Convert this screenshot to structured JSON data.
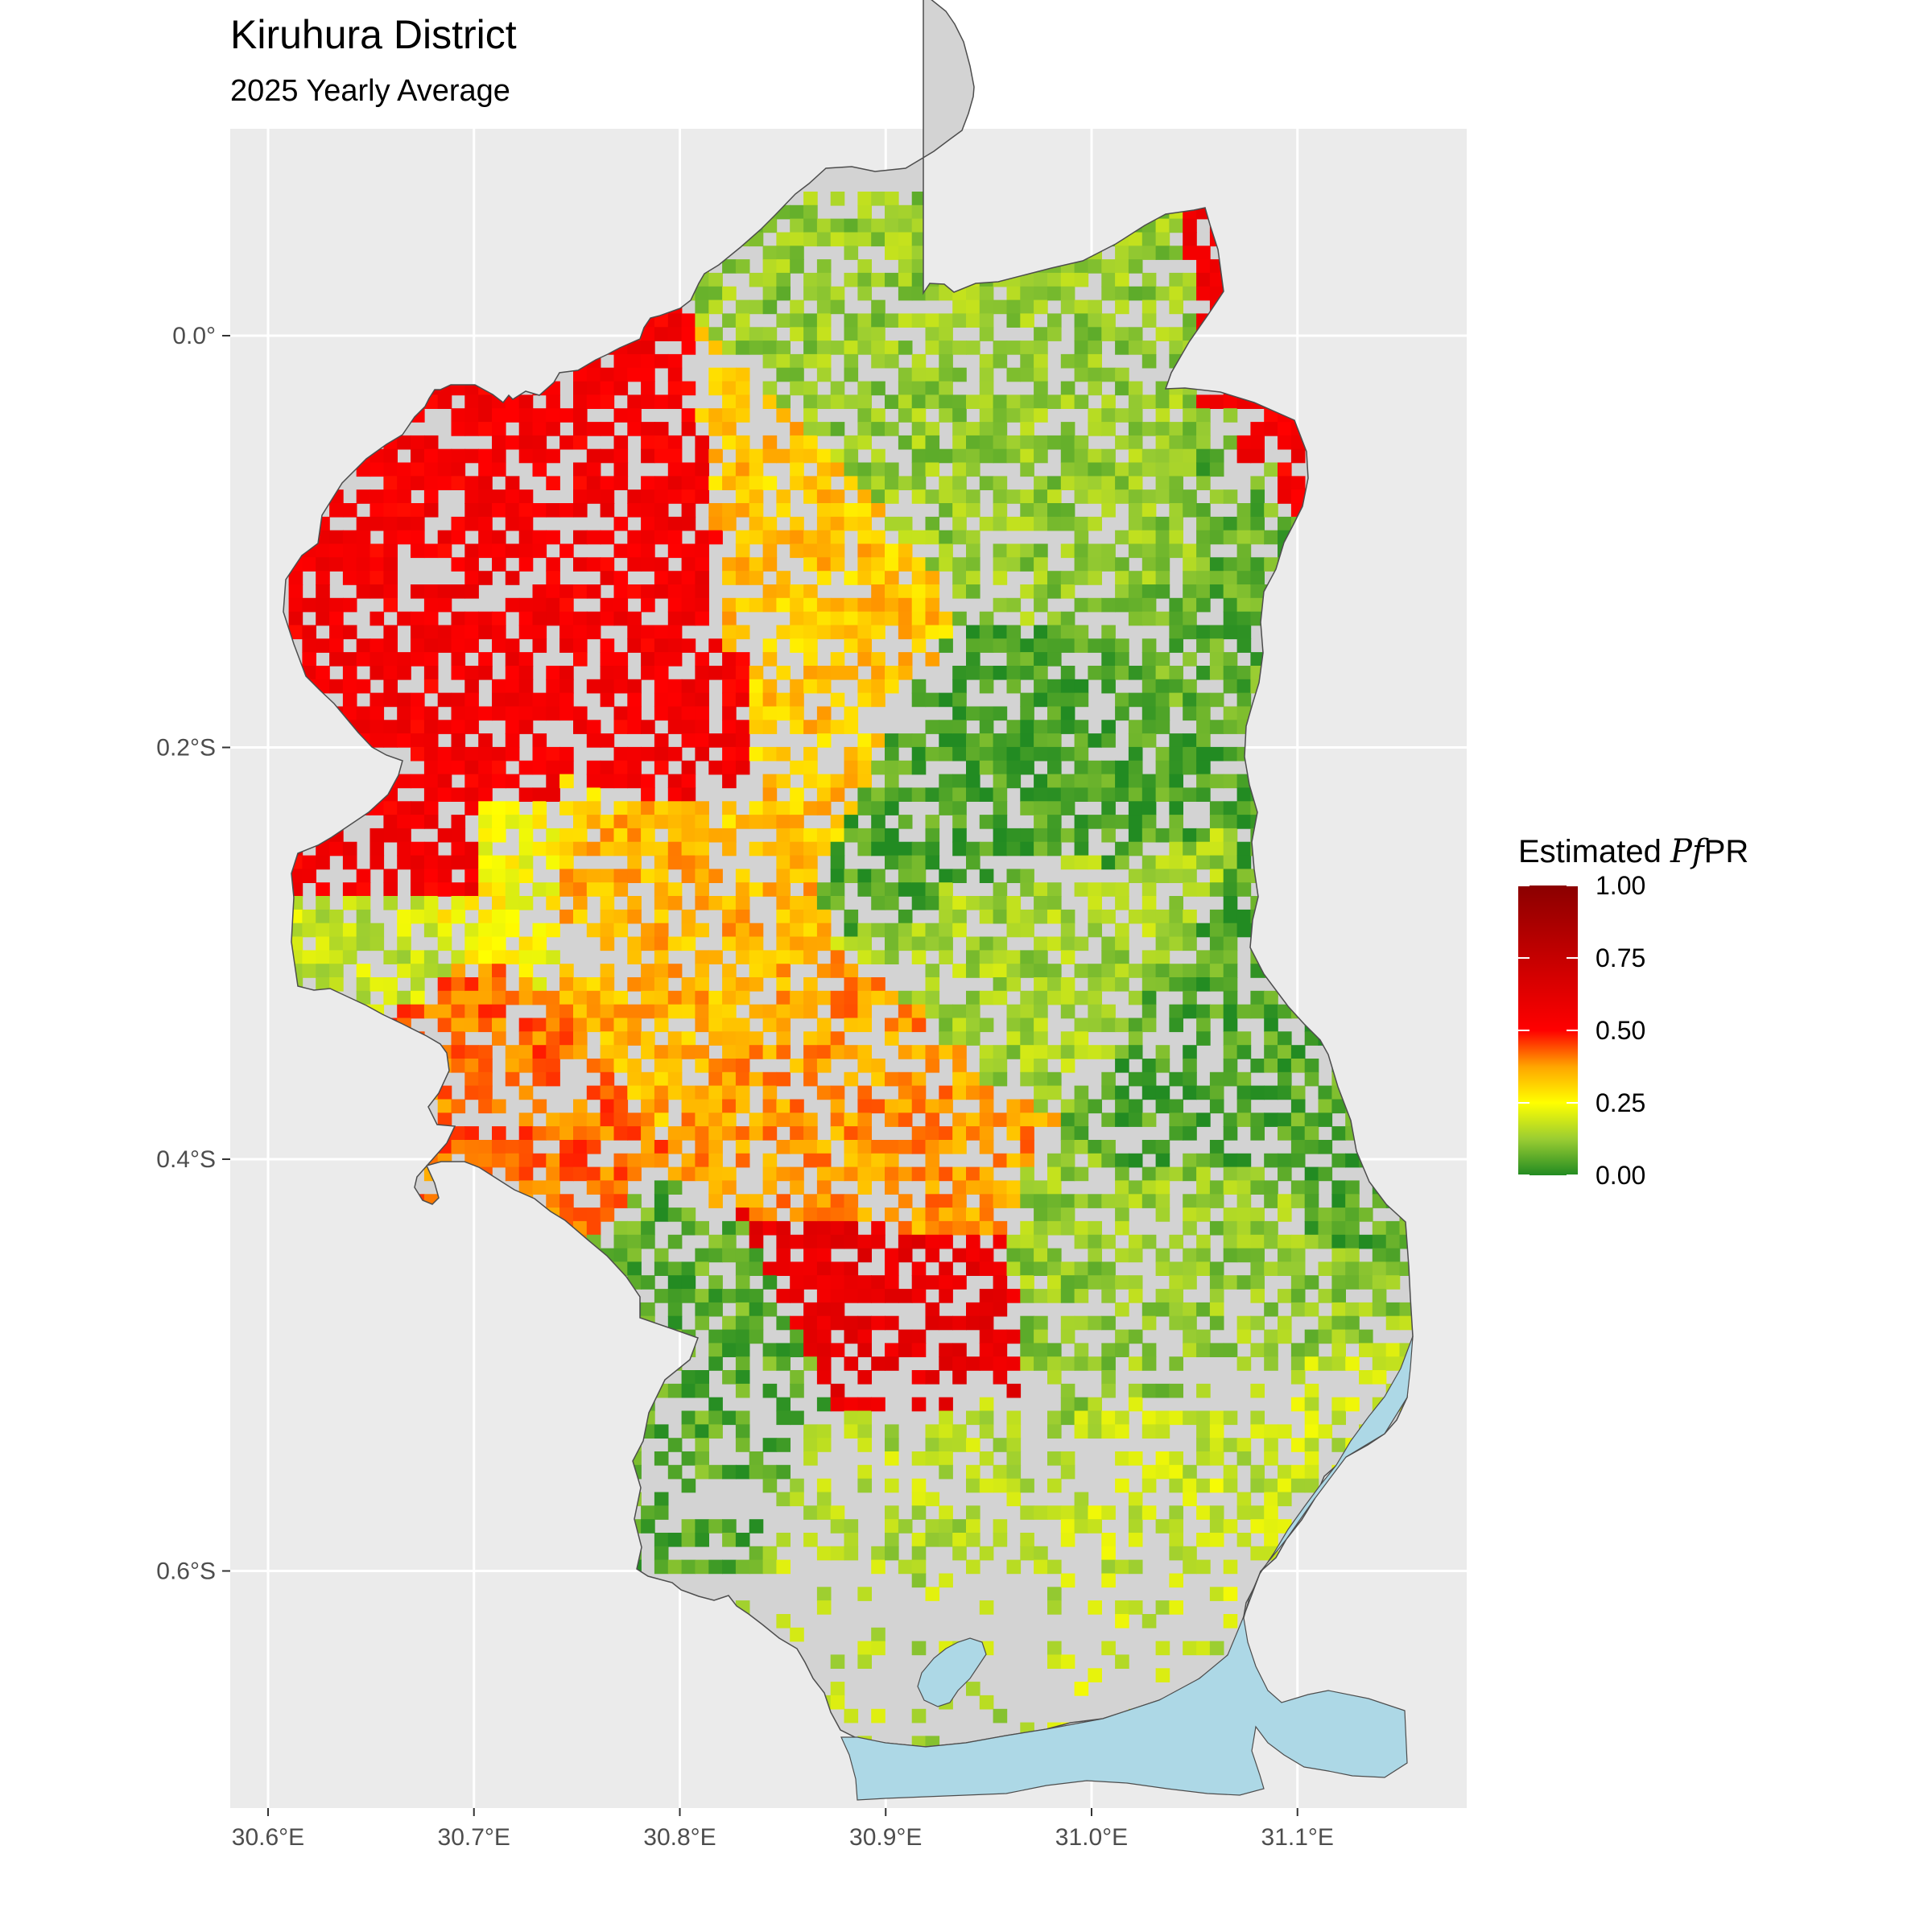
{
  "title": "Kiruhura District",
  "subtitle": "2025 Yearly Average",
  "x_axis": {
    "ticks": [
      "30.6°E",
      "30.7°E",
      "30.8°E",
      "30.9°E",
      "31.0°E",
      "31.1°E"
    ]
  },
  "y_axis": {
    "ticks": [
      "0.0°",
      "0.2°S",
      "0.4°S",
      "0.6°S"
    ]
  },
  "legend": {
    "title_prefix": "Estimated ",
    "title_italic": "Pf",
    "title_suffix": "PR",
    "labels": [
      "1.00",
      "0.75",
      "0.50",
      "0.25",
      "0.00"
    ],
    "gradient": [
      {
        "value": 0.0,
        "color": "#228B22"
      },
      {
        "value": 0.125,
        "color": "#9ACD32"
      },
      {
        "value": 0.25,
        "color": "#FFFF00"
      },
      {
        "value": 0.375,
        "color": "#FFA500"
      },
      {
        "value": 0.5,
        "color": "#FF0000"
      },
      {
        "value": 1.0,
        "color": "#8B0000"
      }
    ]
  },
  "colors": {
    "panel_background": "#EBEBEB",
    "grid": "#FFFFFF",
    "district_fill": "#D3D3D3",
    "water": "#ADD8E6",
    "border": "#4D4D4D"
  },
  "chart_data": {
    "type": "heatmap",
    "title": "Kiruhura District",
    "subtitle": "2025 Yearly Average",
    "x_unit": "longitude (°E)",
    "y_unit": "latitude (°, negative = S)",
    "xlim": [
      30.58,
      31.18
    ],
    "ylim": [
      -0.83,
      0.1
    ],
    "x_ticks": [
      30.6,
      30.7,
      30.8,
      30.9,
      31.0,
      31.1
    ],
    "y_ticks": [
      0.0,
      -0.2,
      -0.4,
      -0.6
    ],
    "grid": true,
    "legend_position": "right",
    "value_range": [
      0,
      1
    ],
    "value_name": "Estimated PfPR",
    "regions": [
      {
        "lon": [
          30.61,
          30.7
        ],
        "lat": [
          -0.13,
          -0.27
        ],
        "value": 0.55
      },
      {
        "lon": [
          30.68,
          30.74
        ],
        "lat": [
          -0.12,
          -0.22
        ],
        "value": 0.55
      },
      {
        "lon": [
          30.78,
          30.83
        ],
        "lat": [
          -0.15,
          -0.22
        ],
        "value": 0.55
      },
      {
        "lon": [
          30.88,
          30.91
        ],
        "lat": [
          -0.47,
          -0.5
        ],
        "value": 0.6
      },
      {
        "lon": [
          31.07,
          31.09
        ],
        "lat": [
          -0.03,
          -0.06
        ],
        "value": 0.55
      },
      {
        "lon": [
          30.74,
          30.82
        ],
        "lat": [
          -0.22,
          -0.32
        ],
        "value": 0.35
      },
      {
        "lon": [
          30.82,
          30.87
        ],
        "lat": [
          -0.11,
          -0.25
        ],
        "value": 0.33
      },
      {
        "lon": [
          30.87,
          30.94
        ],
        "lat": [
          -0.34,
          -0.41
        ],
        "value": 0.38
      },
      {
        "lon": [
          30.66,
          30.7
        ],
        "lat": [
          -0.32,
          -0.37
        ],
        "value": 0.42
      },
      {
        "lon": [
          30.61,
          30.68
        ],
        "lat": [
          -0.27,
          -0.32
        ],
        "value": 0.18
      },
      {
        "lon": [
          30.69,
          30.74
        ],
        "lat": [
          -0.23,
          -0.28
        ],
        "value": 0.25
      },
      {
        "lon": [
          30.9,
          30.98
        ],
        "lat": [
          -0.2,
          -0.26
        ],
        "value": 0.04
      },
      {
        "lon": [
          30.94,
          31.05
        ],
        "lat": [
          0.04,
          -0.12
        ],
        "value": 0.12
      },
      {
        "lon": [
          31.02,
          31.09
        ],
        "lat": [
          -0.03,
          -0.12
        ],
        "value": 0.07
      },
      {
        "lon": [
          31.03,
          31.09
        ],
        "lat": [
          -0.34,
          -0.4
        ],
        "value": 0.05
      },
      {
        "lon": [
          30.81,
          30.86
        ],
        "lat": [
          -0.48,
          -0.55
        ],
        "value": 0.06
      },
      {
        "lon": [
          30.92,
          31.0
        ],
        "lat": [
          -0.25,
          -0.36
        ],
        "value": 0.14
      },
      {
        "lon": [
          30.96,
          31.1
        ],
        "lat": [
          -0.4,
          -0.5
        ],
        "value": 0.12
      },
      {
        "lon": [
          30.85,
          30.96
        ],
        "lat": [
          -0.52,
          -0.59
        ],
        "value": 0.16
      },
      {
        "lon": [
          31.03,
          31.09
        ],
        "lat": [
          -0.53,
          -0.6
        ],
        "value": 0.18
      }
    ]
  }
}
